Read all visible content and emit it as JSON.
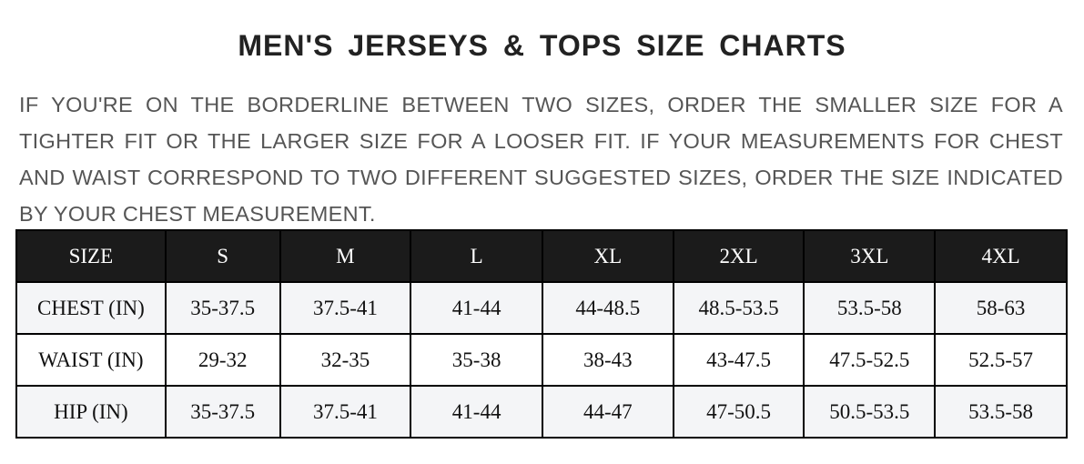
{
  "title": "MEN'S JERSEYS & TOPS SIZE CHARTS",
  "note": "IF YOU'RE ON THE BORDERLINE BETWEEN TWO SIZES, ORDER THE SMALLER SIZE FOR A TIGHTER FIT OR THE LARGER SIZE FOR A LOOSER FIT. IF YOUR MEASUREMENTS FOR CHEST AND WAIST CORRESPOND TO TWO DIFFERENT SUGGESTED SIZES, ORDER THE SIZE INDICATED BY YOUR CHEST MEASUREMENT.",
  "table": {
    "headers": [
      "SIZE",
      "S",
      "M",
      "L",
      "XL",
      "2XL",
      "3XL",
      "4XL"
    ],
    "rows": [
      [
        "CHEST (IN)",
        "35-37.5",
        "37.5-41",
        "41-44",
        "44-48.5",
        "48.5-53.5",
        "53.5-58",
        "58-63"
      ],
      [
        "WAIST (IN)",
        "29-32",
        "32-35",
        "35-38",
        "38-43",
        "43-47.5",
        "47.5-52.5",
        "52.5-57"
      ],
      [
        "HIP (IN)",
        "35-37.5",
        "37.5-41",
        "41-44",
        "44-47",
        "47-50.5",
        "50.5-53.5",
        "53.5-58"
      ]
    ]
  },
  "colors": {
    "header_bg": "#1b1b1b",
    "alt_row_bg": "#f4f5f7",
    "note_text": "#555555"
  }
}
